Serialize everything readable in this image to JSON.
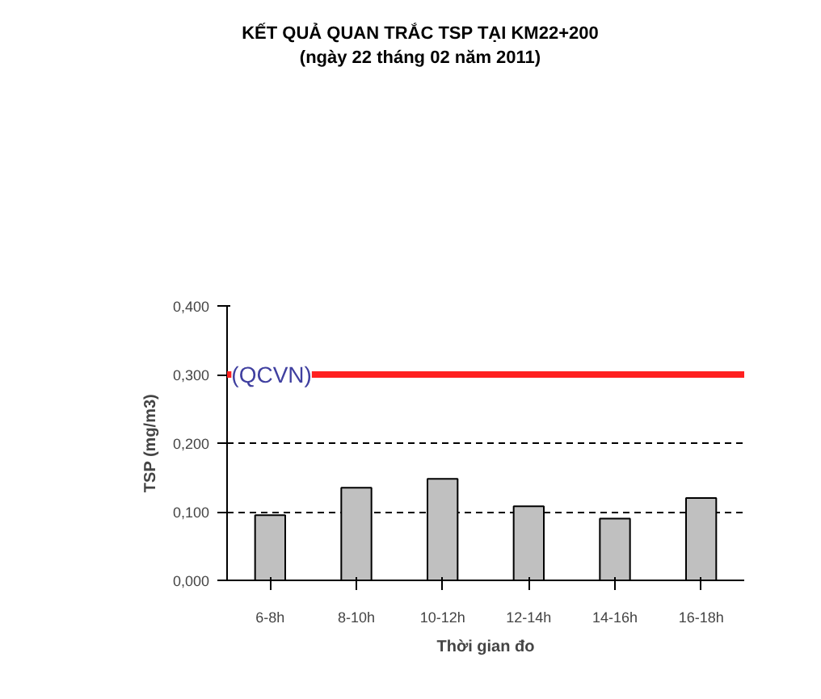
{
  "chart_data": {
    "type": "bar",
    "title": "KẾT QUẢ QUAN TRẮC TSP TẠI KM22+200",
    "subtitle": "(ngày  22 tháng 02 năm  2011)",
    "xlabel": "Thời gian đo",
    "ylabel": "TSP (mg/m3)",
    "categories": [
      "6-8h",
      "8-10h",
      "10-12h",
      "12-14h",
      "14-16h",
      "16-18h"
    ],
    "values": [
      0.095,
      0.135,
      0.148,
      0.108,
      0.09,
      0.12
    ],
    "color": "#c0c0c0",
    "ylim": [
      0,
      0.4
    ],
    "yticks": [
      {
        "value": 0,
        "label": "0,000"
      },
      {
        "value": 0.1,
        "label": "0,100"
      },
      {
        "value": 0.2,
        "label": "0,200"
      },
      {
        "value": 0.3,
        "label": "0,300"
      },
      {
        "value": 0.4,
        "label": "0,400"
      }
    ],
    "grid": "y",
    "ref_lines": [
      {
        "axis": "y",
        "value": 0.3,
        "label": "(QCVN)",
        "color": "#ff2020"
      }
    ]
  }
}
